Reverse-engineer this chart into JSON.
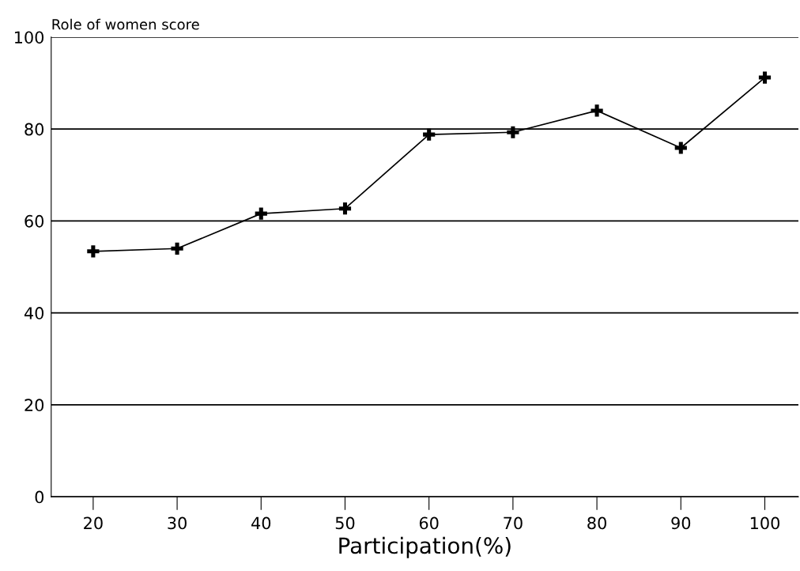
{
  "chart_data": {
    "type": "line",
    "xlabel": "Participation(%)",
    "ylabel": "Role of women score",
    "x": [
      20,
      30,
      40,
      50,
      60,
      70,
      80,
      90,
      100
    ],
    "series": [
      {
        "color": "#000000",
        "values": [
          53.4,
          54.0,
          61.6,
          62.7,
          78.8,
          79.3,
          84.0,
          75.9,
          91.2
        ]
      }
    ],
    "xlim": [
      15,
      104
    ],
    "xticks": [
      20,
      30,
      40,
      50,
      60,
      70,
      80,
      90,
      100
    ],
    "ylim": [
      0,
      100
    ],
    "yticks": [
      0,
      20,
      40,
      60,
      80,
      100
    ],
    "grid": "y",
    "marker": "cross",
    "line_style": "solid",
    "legend": false
  }
}
